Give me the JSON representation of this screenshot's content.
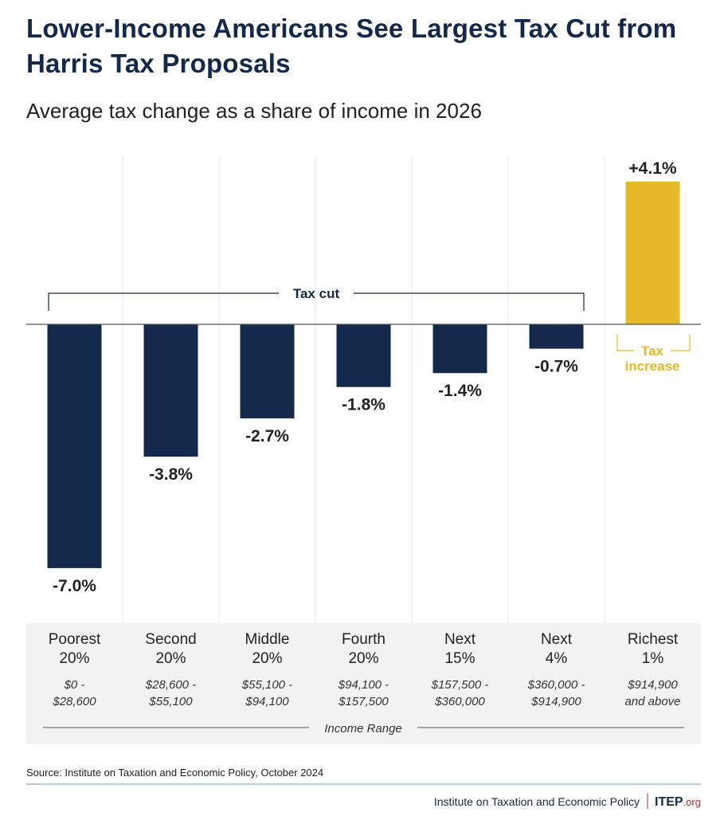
{
  "title": "Lower-Income Americans See Largest Tax Cut from Harris Tax Proposals",
  "subtitle": "Average tax change as a share of income in 2026",
  "colors": {
    "cut": "#14284b",
    "increase": "#e6b929",
    "band": "#f2f2f2"
  },
  "chart_data": {
    "type": "bar",
    "title": "Lower-Income Americans See Largest Tax Cut from Harris Tax Proposals",
    "subtitle": "Average tax change as a share of income in 2026",
    "categories": [
      {
        "group": [
          "Poorest",
          "20%"
        ],
        "range": [
          "$0 -",
          "$28,600"
        ]
      },
      {
        "group": [
          "Second",
          "20%"
        ],
        "range": [
          "$28,600 -",
          "$55,100"
        ]
      },
      {
        "group": [
          "Middle",
          "20%"
        ],
        "range": [
          "$55,100 -",
          "$94,100"
        ]
      },
      {
        "group": [
          "Fourth",
          "20%"
        ],
        "range": [
          "$94,100 -",
          "$157,500"
        ]
      },
      {
        "group": [
          "Next",
          "15%"
        ],
        "range": [
          "$157,500 -",
          "$360,000"
        ]
      },
      {
        "group": [
          "Next",
          "4%"
        ],
        "range": [
          "$360,000 -",
          "$914,900"
        ]
      },
      {
        "group": [
          "Richest",
          "1%"
        ],
        "range": [
          "$914,900",
          "and above"
        ]
      }
    ],
    "values": [
      -7.0,
      -3.8,
      -2.7,
      -1.8,
      -1.4,
      -0.7,
      4.1
    ],
    "data_labels": [
      "-7.0%",
      "-3.8%",
      "-2.7%",
      "-1.8%",
      "-1.4%",
      "-0.7%",
      "+4.1%"
    ],
    "xlabel": "Income Range",
    "annotations": {
      "tax_cut": "Tax cut",
      "tax_increase": [
        "Tax",
        "increase"
      ]
    },
    "grid": false
  },
  "source": "Source: Institute on Taxation and Economic Policy, October 2024",
  "footer": {
    "org": "Institute on Taxation and Economic Policy",
    "logo": "ITEP",
    "logo_suffix": ".org"
  }
}
